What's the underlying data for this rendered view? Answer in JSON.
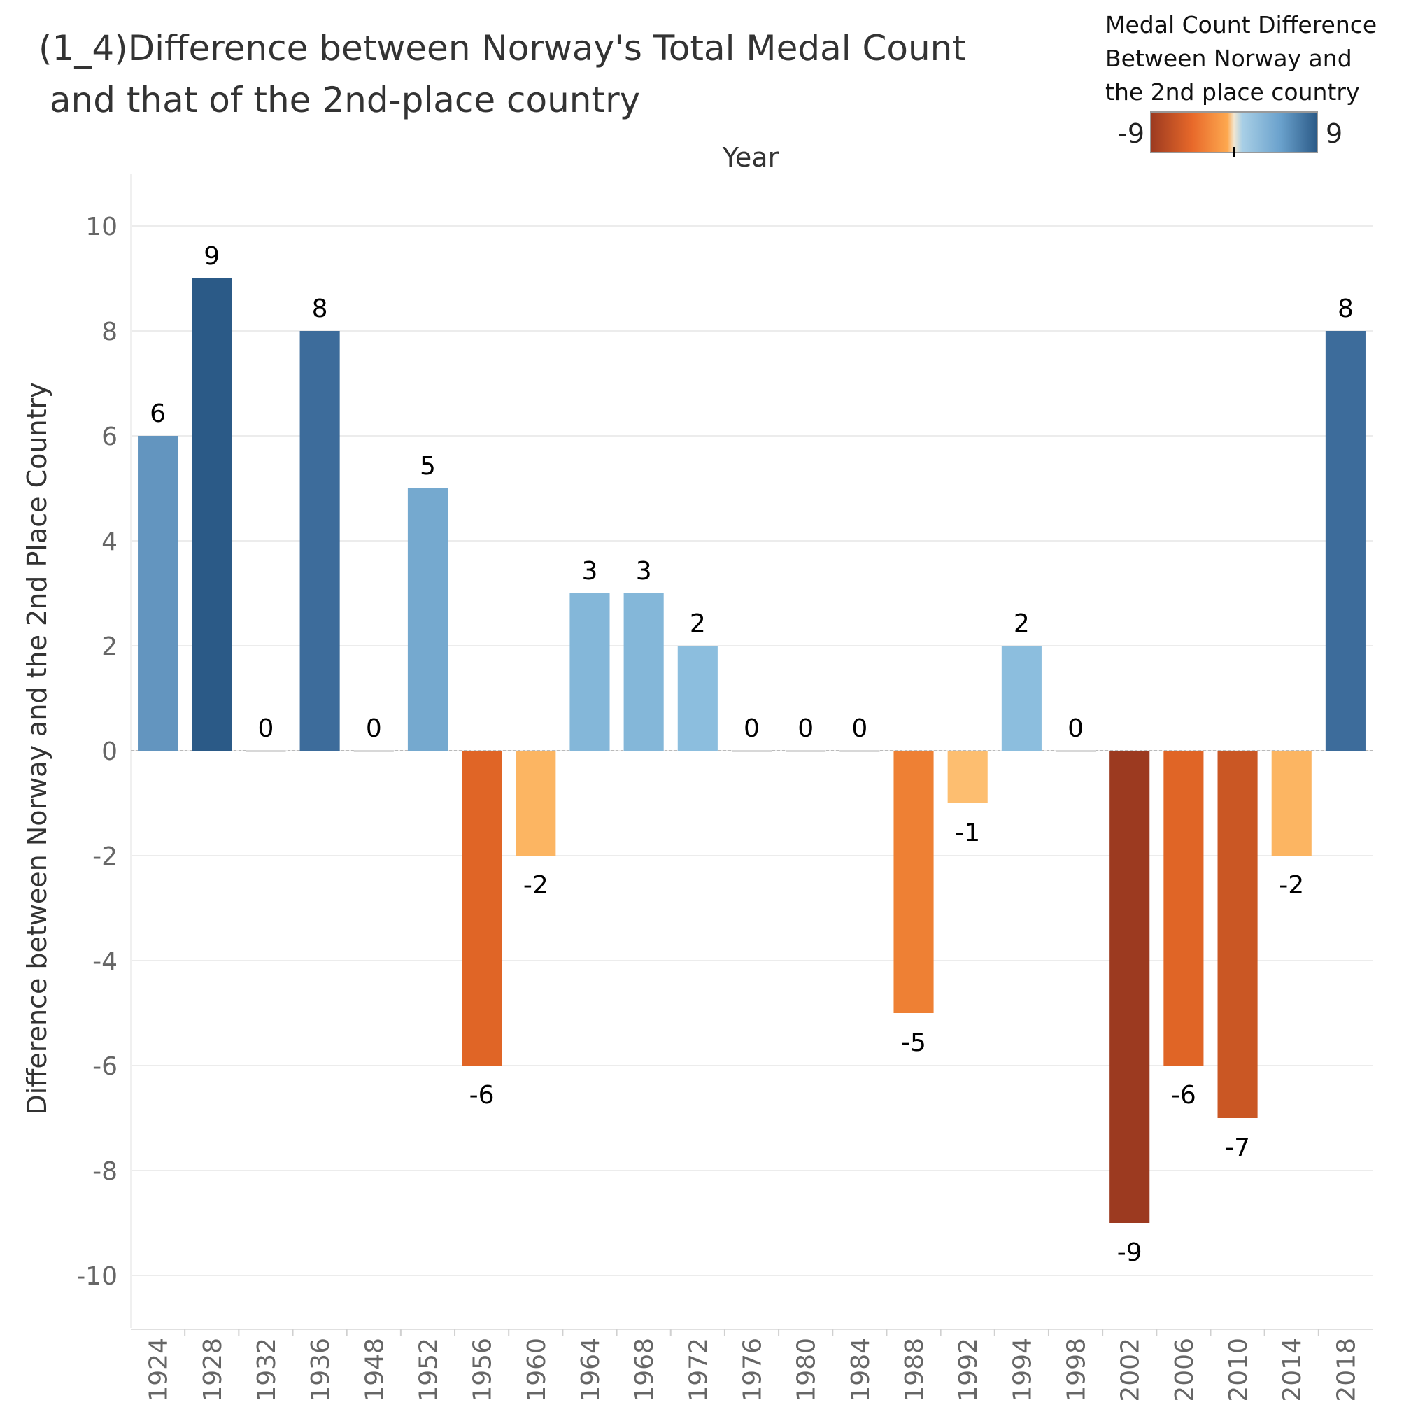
{
  "chart_data": {
    "type": "bar",
    "title_line1": "(1_4)Difference between Norway's Total Medal Count",
    "title_line2": " and that of the 2nd-place country",
    "top_axis_label": "Year",
    "ylabel": "Difference between Norway and the 2nd Place Country",
    "ylim": [
      -11,
      11
    ],
    "yticks": [
      "10",
      "8",
      "6",
      "4",
      "2",
      "0",
      "-2",
      "-4",
      "-6",
      "-8",
      "-10"
    ],
    "categories": [
      "1924",
      "1928",
      "1932",
      "1936",
      "1948",
      "1952",
      "1956",
      "1960",
      "1964",
      "1968",
      "1972",
      "1976",
      "1980",
      "1984",
      "1988",
      "1992",
      "1994",
      "1998",
      "2002",
      "2006",
      "2010",
      "2014",
      "2018"
    ],
    "values": [
      6,
      9,
      0,
      8,
      0,
      5,
      -6,
      -2,
      3,
      3,
      2,
      0,
      0,
      0,
      -5,
      -1,
      2,
      0,
      -9,
      -6,
      -7,
      -2,
      8
    ],
    "value_labels": [
      "6",
      "9",
      "0",
      "8",
      "0",
      "5",
      "-6",
      "-2",
      "3",
      "3",
      "2",
      "0",
      "0",
      "0",
      "-5",
      "-1",
      "2",
      "0",
      "-9",
      "-6",
      "-7",
      "-2",
      "8"
    ],
    "grid": true,
    "legend": {
      "title_lines": [
        "Medal Count Difference",
        "Between Norway and",
        "the 2nd place country"
      ],
      "min_label": "-9",
      "max_label": "9",
      "placement": "top-right",
      "colors": [
        "#9c3a20",
        "#e8692a",
        "#fda84f",
        "#f2e6d0",
        "#a8cfe6",
        "#6aa1cc",
        "#2b5a87"
      ]
    }
  }
}
